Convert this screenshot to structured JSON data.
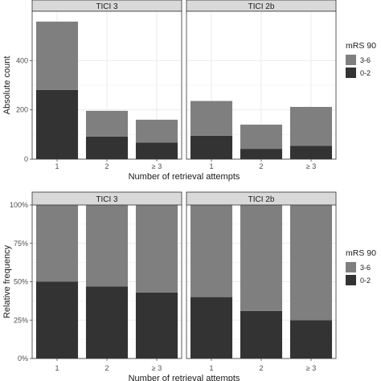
{
  "colors": {
    "dark": "#333333",
    "light": "#7f7f7f",
    "strip_bg": "#d9d9d9",
    "grid": "#ebebeb",
    "panel_border": "#333333",
    "text": "#1a1a1a",
    "tick_text": "#4d4d4d"
  },
  "chart_data": [
    {
      "type": "bar",
      "stacked": true,
      "ylabel": "Absolute count",
      "xlabel": "Number of retrieval attempts",
      "categories": [
        "1",
        "2",
        "≥ 3"
      ],
      "ylim": [
        0,
        600
      ],
      "yticks": [
        0,
        200,
        400
      ],
      "ytick_labels": [
        "0",
        "200",
        "400"
      ],
      "grid": true,
      "legend": {
        "title": "mRS 90",
        "position": "right",
        "items": [
          "3-6",
          "0-2"
        ]
      },
      "facets": [
        {
          "label": "TICI 3",
          "series": [
            {
              "name": "0-2",
              "values": [
                281,
                92,
                67
              ]
            },
            {
              "name": "3-6",
              "values": [
                277,
                104,
                93
              ]
            }
          ]
        },
        {
          "label": "TICI 2b",
          "series": [
            {
              "name": "0-2",
              "values": [
                95,
                42,
                54
              ]
            },
            {
              "name": "3-6",
              "values": [
                141,
                98,
                158
              ]
            }
          ]
        }
      ]
    },
    {
      "type": "bar",
      "stacked": true,
      "ylabel": "Relative frequency",
      "xlabel": "Number of retrieval attempts",
      "categories": [
        "1",
        "2",
        "≥ 3"
      ],
      "ylim": [
        0,
        1
      ],
      "yticks": [
        0,
        0.25,
        0.5,
        0.75,
        1
      ],
      "ytick_labels": [
        "0%",
        "25%",
        "50%",
        "75%",
        "100%"
      ],
      "grid": true,
      "legend": {
        "title": "mRS 90",
        "position": "right",
        "items": [
          "3-6",
          "0-2"
        ]
      },
      "facets": [
        {
          "label": "TICI 3",
          "series": [
            {
              "name": "0-2",
              "values": [
                0.5,
                0.47,
                0.43
              ]
            },
            {
              "name": "3-6",
              "values": [
                0.5,
                0.53,
                0.57
              ]
            }
          ]
        },
        {
          "label": "TICI 2b",
          "series": [
            {
              "name": "0-2",
              "values": [
                0.4,
                0.31,
                0.25
              ]
            },
            {
              "name": "3-6",
              "values": [
                0.6,
                0.69,
                0.75
              ]
            }
          ]
        }
      ]
    }
  ]
}
